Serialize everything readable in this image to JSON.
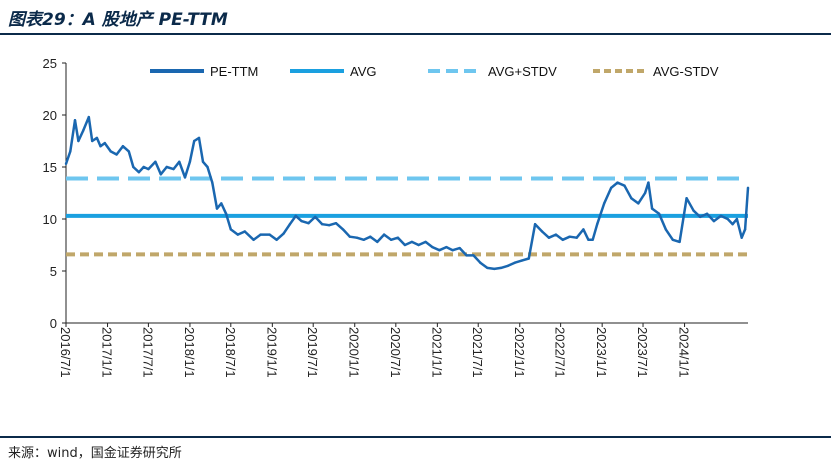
{
  "title": "图表29：A 股地产 PE-TTM",
  "source": "来源：wind，国金证券研究所",
  "colors": {
    "pe": "#1a67b0",
    "avg": "#1aa0e0",
    "avg_plus": "#6ec6ef",
    "avg_minus": "#c0a76a",
    "axis": "#222222",
    "header_rule": "#0b2a4a"
  },
  "chart_data": {
    "type": "line",
    "title": "",
    "xlabel": "",
    "ylabel": "",
    "ylim": [
      0,
      25
    ],
    "yticks": [
      "0",
      "5",
      "10",
      "15",
      "20",
      "25"
    ],
    "xticks": [
      "2016/7/1",
      "2017/1/1",
      "2017/7/1",
      "2018/1/1",
      "2018/7/1",
      "2019/1/1",
      "2019/7/1",
      "2020/1/1",
      "2020/7/1",
      "2021/1/1",
      "2021/7/1",
      "2022/1/1",
      "2022/7/1",
      "2023/1/1",
      "2023/7/1",
      "2024/1/1"
    ],
    "grid": false,
    "legend_position": "top",
    "series": [
      {
        "name": "PE-TTM",
        "style": "solid",
        "x": [
          "2016-07-01",
          "2016-07-20",
          "2016-08-10",
          "2016-08-25",
          "2016-09-15",
          "2016-10-10",
          "2016-10-25",
          "2016-11-15",
          "2016-12-01",
          "2016-12-20",
          "2017-01-15",
          "2017-02-10",
          "2017-03-10",
          "2017-04-05",
          "2017-04-25",
          "2017-05-20",
          "2017-06-10",
          "2017-07-01",
          "2017-08-01",
          "2017-08-25",
          "2017-09-20",
          "2017-10-20",
          "2017-11-15",
          "2017-12-10",
          "2018-01-01",
          "2018-01-20",
          "2018-02-10",
          "2018-02-28",
          "2018-03-20",
          "2018-04-10",
          "2018-05-01",
          "2018-05-20",
          "2018-06-10",
          "2018-07-01",
          "2018-08-01",
          "2018-09-01",
          "2018-10-10",
          "2018-11-10",
          "2018-12-20",
          "2019-01-20",
          "2019-02-20",
          "2019-03-20",
          "2019-04-15",
          "2019-05-10",
          "2019-06-10",
          "2019-07-10",
          "2019-08-10",
          "2019-09-10",
          "2019-10-10",
          "2019-11-10",
          "2019-12-10",
          "2020-01-10",
          "2020-02-10",
          "2020-03-10",
          "2020-04-10",
          "2020-05-10",
          "2020-06-10",
          "2020-07-10",
          "2020-08-10",
          "2020-09-10",
          "2020-10-10",
          "2020-11-10",
          "2020-12-10",
          "2021-01-10",
          "2021-02-10",
          "2021-03-10",
          "2021-04-10",
          "2021-05-10",
          "2021-06-10",
          "2021-07-10",
          "2021-08-10",
          "2021-09-10",
          "2021-10-10",
          "2021-11-10",
          "2021-12-10",
          "2022-01-10",
          "2022-02-10",
          "2022-03-10",
          "2022-04-10",
          "2022-05-10",
          "2022-06-10",
          "2022-07-10",
          "2022-08-10",
          "2022-09-10",
          "2022-10-10",
          "2022-11-01",
          "2022-11-20",
          "2022-12-10",
          "2023-01-10",
          "2023-02-10",
          "2023-03-10",
          "2023-04-10",
          "2023-05-10",
          "2023-06-10",
          "2023-07-10",
          "2023-07-25",
          "2023-08-10",
          "2023-09-10",
          "2023-10-10",
          "2023-11-10",
          "2023-12-10",
          "2024-01-10",
          "2024-02-10",
          "2024-03-10",
          "2024-04-10",
          "2024-05-10",
          "2024-06-10",
          "2024-07-10",
          "2024-08-01",
          "2024-08-20",
          "2024-09-10",
          "2024-09-25",
          "2024-10-08"
        ],
        "values": [
          15.3,
          16.5,
          19.5,
          17.5,
          18.5,
          19.8,
          17.5,
          17.8,
          17.0,
          17.3,
          16.5,
          16.2,
          17.0,
          16.5,
          15.0,
          14.5,
          15.0,
          14.8,
          15.5,
          14.3,
          15.0,
          14.8,
          15.5,
          14.0,
          15.5,
          17.5,
          17.8,
          15.5,
          15.0,
          13.5,
          11.0,
          11.5,
          10.5,
          9.0,
          8.5,
          8.8,
          8.0,
          8.5,
          8.5,
          8.0,
          8.6,
          9.5,
          10.3,
          9.8,
          9.6,
          10.2,
          9.5,
          9.4,
          9.6,
          9.0,
          8.3,
          8.2,
          8.0,
          8.3,
          7.8,
          8.5,
          8.0,
          8.2,
          7.5,
          7.8,
          7.5,
          7.8,
          7.3,
          7.0,
          7.3,
          7.0,
          7.2,
          6.5,
          6.5,
          5.8,
          5.3,
          5.2,
          5.3,
          5.5,
          5.8,
          6.0,
          6.2,
          9.5,
          8.8,
          8.2,
          8.5,
          8.0,
          8.3,
          8.2,
          9.0,
          8.0,
          8.0,
          9.5,
          11.5,
          13.0,
          13.5,
          13.2,
          12.0,
          11.5,
          12.5,
          13.5,
          11.0,
          10.5,
          9.0,
          8.0,
          7.8,
          12.0,
          10.8,
          10.2,
          10.5,
          9.8,
          10.3,
          10.0,
          9.5,
          10.0,
          8.2,
          9.0,
          13.0
        ]
      },
      {
        "name": "AVG",
        "style": "solid",
        "value": 10.3
      },
      {
        "name": "AVG+STDV",
        "style": "dashed",
        "value": 13.9
      },
      {
        "name": "AVG-STDV",
        "style": "dashed",
        "value": 6.6
      }
    ]
  }
}
